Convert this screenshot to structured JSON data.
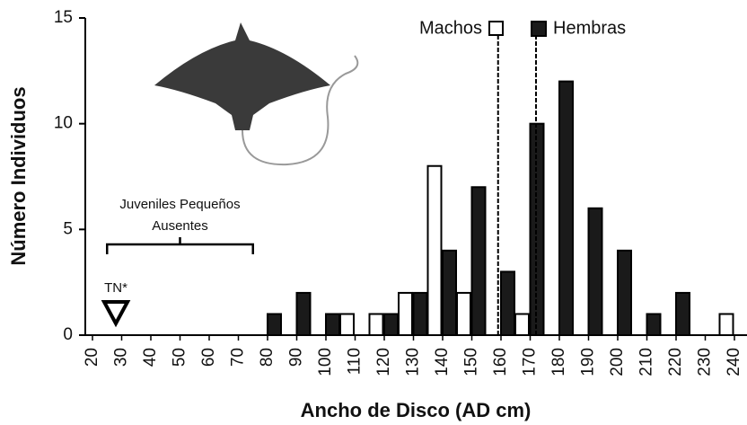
{
  "chart_data": {
    "type": "bar",
    "x_label": "Ancho de Disco (AD cm)",
    "y_label": "Número Individuos",
    "categories": [
      "20",
      "30",
      "40",
      "50",
      "60",
      "70",
      "80",
      "90",
      "100",
      "110",
      "120",
      "130",
      "140",
      "150",
      "160",
      "170",
      "180",
      "190",
      "200",
      "210",
      "220",
      "230",
      "240"
    ],
    "series": [
      {
        "name": "Machos",
        "color": "#ffffff",
        "values": [
          0,
          0,
          0,
          0,
          0,
          0,
          0,
          0,
          0,
          1,
          1,
          2,
          8,
          2,
          0,
          1,
          0,
          0,
          0,
          0,
          0,
          0,
          1
        ]
      },
      {
        "name": "Hembras",
        "color": "#1a1a1a",
        "values": [
          0,
          0,
          0,
          0,
          0,
          0,
          1,
          2,
          1,
          0,
          1,
          2,
          4,
          7,
          3,
          10,
          12,
          6,
          4,
          1,
          2,
          0,
          0
        ]
      }
    ],
    "ylim": [
      0,
      15
    ],
    "yticks": [
      0,
      5,
      10,
      15
    ],
    "reference_lines": [
      159,
      172
    ],
    "annotations": [
      {
        "text": "Juveniles Pequeños",
        "text2": "Ausentes",
        "x_range": [
          25,
          75
        ]
      },
      {
        "text": "TN*",
        "x": 28
      }
    ],
    "legend": "top-right"
  }
}
